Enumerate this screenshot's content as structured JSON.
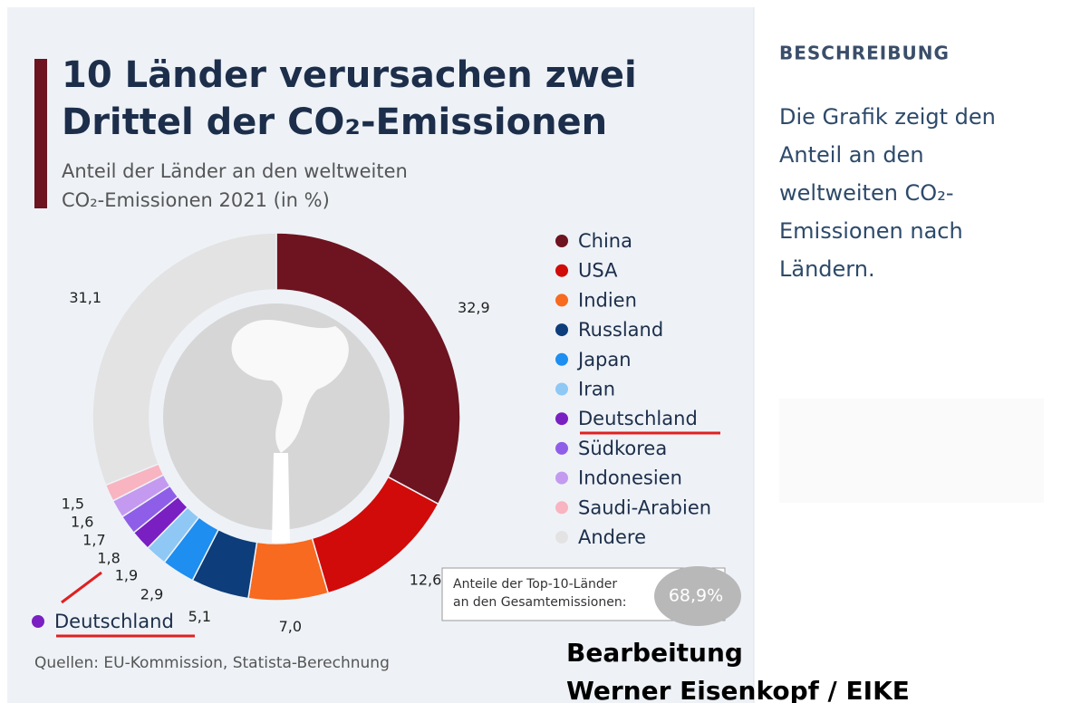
{
  "chart_data": {
    "type": "pie",
    "title": [
      "10 Länder verursachen zwei",
      "Drittel der CO₂-Emissionen"
    ],
    "subtitle": [
      "Anteil der Länder an den weltweiten",
      "CO₂-Emissionen 2021 (in %)"
    ],
    "categories": [
      "China",
      "USA",
      "Indien",
      "Russland",
      "Japan",
      "Iran",
      "Deutschland",
      "Südkorea",
      "Indonesien",
      "Saudi-Arabien",
      "Andere"
    ],
    "values": [
      32.9,
      12.6,
      7.0,
      5.1,
      2.9,
      1.9,
      1.8,
      1.7,
      1.6,
      1.5,
      31.1
    ],
    "value_labels": [
      "32,9",
      "12,6",
      "7,0",
      "5,1",
      "2,9",
      "1,9",
      "1,8",
      "1,7",
      "1,6",
      "1,5",
      "31,1"
    ],
    "colors": [
      "#6d1420",
      "#d10a0a",
      "#f76a1f",
      "#0d3d7a",
      "#1e8ef0",
      "#8fc8f5",
      "#7a1fc2",
      "#8f5ee8",
      "#c39af0",
      "#f8b4c0",
      "#e3e3e3"
    ],
    "legend": "right",
    "top10_note": [
      "Anteile der Top-10-Länder",
      "an den Gesamtemissionen:"
    ],
    "top10_share": {
      "value": 68.9,
      "label": "68,9%"
    },
    "source": "Quellen: EU-Kommission, Statista-Berechnung"
  },
  "sidebar": {
    "heading": "BESCHREIBUNG",
    "text": [
      "Die Grafik zeigt den",
      "Anteil an den",
      "weltweiten CO₂-",
      "Emissionen nach",
      "Ländern."
    ]
  },
  "overlay": [
    "Bearbeitung",
    "Werner Eisenkopf / EIKE"
  ]
}
